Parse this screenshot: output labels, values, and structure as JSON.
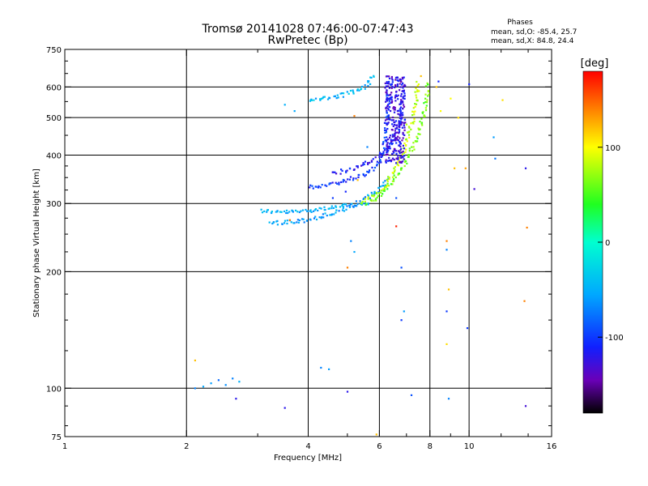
{
  "header": {
    "title": "Tromsø 20141028 07:46:00-07:47:43",
    "subtitle": "RwPretec (Bp)",
    "phase_heading": "Phases",
    "phase_o": "mean, sd,O: -85.4, 25.7",
    "phase_x": "mean, sd,X:  84.8, 24.4"
  },
  "colorbar": {
    "title": "[deg]",
    "range": [
      -180,
      180
    ],
    "ticks": [
      {
        "value": 100,
        "label": "100"
      },
      {
        "value": 0,
        "label": "0"
      },
      {
        "value": -100,
        "label": "-100"
      }
    ],
    "stops": [
      {
        "value": -180,
        "color": "#000000"
      },
      {
        "value": -145,
        "color": "#6a00b8"
      },
      {
        "value": -110,
        "color": "#1020ff"
      },
      {
        "value": -55,
        "color": "#00a8ff"
      },
      {
        "value": 0,
        "color": "#00ffd0"
      },
      {
        "value": 40,
        "color": "#20ff20"
      },
      {
        "value": 100,
        "color": "#ffff00"
      },
      {
        "value": 140,
        "color": "#ff8000"
      },
      {
        "value": 180,
        "color": "#ff0000"
      }
    ]
  },
  "chart_data": {
    "type": "scatter",
    "title": "Tromsø 20141028 07:46:00-07:47:43",
    "subtitle": "RwPretec (Bp)",
    "xlabel": "Frequency [MHz]",
    "ylabel": "Stationary phase Virtual Height [km]",
    "x_scale": "log",
    "y_scale": "log",
    "xlim": [
      1,
      16
    ],
    "ylim": [
      75,
      750
    ],
    "x_ticks": [
      {
        "value": 1,
        "label": "1"
      },
      {
        "value": 2,
        "label": "2"
      },
      {
        "value": 4,
        "label": "4"
      },
      {
        "value": 6,
        "label": "6"
      },
      {
        "value": 8,
        "label": "8"
      },
      {
        "value": 10,
        "label": "10"
      },
      {
        "value": 16,
        "label": "16"
      }
    ],
    "y_ticks": [
      {
        "value": 75,
        "label": "75"
      },
      {
        "value": 100,
        "label": "100"
      },
      {
        "value": 200,
        "label": "200"
      },
      {
        "value": 300,
        "label": "300"
      },
      {
        "value": 400,
        "label": "400"
      },
      {
        "value": 500,
        "label": "500"
      },
      {
        "value": 600,
        "label": "600"
      },
      {
        "value": 750,
        "label": "750"
      }
    ],
    "x_minor_ticks": [
      3,
      5,
      7,
      9,
      12,
      14
    ],
    "y_minor_ticks": [
      80,
      90,
      125,
      150,
      175,
      225,
      250,
      275,
      325,
      350,
      375,
      450,
      550,
      650,
      700
    ],
    "grid": true,
    "traces": [
      {
        "points": [
          [
            3.05,
            288
          ],
          [
            3.3,
            285
          ],
          [
            3.6,
            285
          ],
          [
            3.9,
            287
          ],
          [
            4.2,
            290
          ],
          [
            4.6,
            293
          ],
          [
            5.0,
            296
          ],
          [
            5.4,
            298
          ],
          [
            5.7,
            300
          ]
        ],
        "phase": -50
      },
      {
        "points": [
          [
            3.2,
            267
          ],
          [
            3.5,
            268
          ],
          [
            3.9,
            271
          ],
          [
            4.3,
            277
          ],
          [
            4.7,
            285
          ],
          [
            5.1,
            295
          ],
          [
            5.5,
            307
          ],
          [
            5.9,
            322
          ],
          [
            6.3,
            348
          ]
        ],
        "phase": -60
      },
      {
        "points": [
          [
            5.6,
            300
          ],
          [
            5.9,
            310
          ],
          [
            6.2,
            325
          ],
          [
            6.5,
            345
          ],
          [
            6.8,
            370
          ],
          [
            7.1,
            400
          ],
          [
            7.4,
            440
          ],
          [
            7.6,
            480
          ],
          [
            7.8,
            540
          ],
          [
            7.95,
            620
          ]
        ],
        "phase": 60
      },
      {
        "points": [
          [
            5.4,
            300
          ],
          [
            5.8,
            315
          ],
          [
            6.2,
            330
          ],
          [
            6.5,
            360
          ],
          [
            6.8,
            395
          ],
          [
            7.0,
            430
          ],
          [
            7.2,
            480
          ],
          [
            7.35,
            540
          ],
          [
            7.5,
            620
          ]
        ],
        "phase": 85
      },
      {
        "points": [
          [
            4.0,
            330
          ],
          [
            4.4,
            335
          ],
          [
            4.8,
            340
          ],
          [
            5.2,
            350
          ],
          [
            5.6,
            360
          ],
          [
            5.9,
            375
          ],
          [
            6.1,
            400
          ],
          [
            6.2,
            430
          ],
          [
            6.25,
            480
          ],
          [
            6.3,
            540
          ],
          [
            6.35,
            630
          ]
        ],
        "phase": -100
      },
      {
        "points": [
          [
            4.6,
            360
          ],
          [
            5.0,
            365
          ],
          [
            5.4,
            375
          ],
          [
            5.8,
            390
          ],
          [
            6.2,
            410
          ],
          [
            6.5,
            440
          ],
          [
            6.7,
            480
          ],
          [
            6.8,
            530
          ],
          [
            6.9,
            600
          ]
        ],
        "phase": -115
      },
      {
        "points": [
          [
            4.0,
            550
          ],
          [
            4.4,
            560
          ],
          [
            4.8,
            570
          ],
          [
            5.2,
            585
          ],
          [
            5.5,
            600
          ],
          [
            5.7,
            625
          ],
          [
            5.85,
            650
          ]
        ],
        "phase": -45
      }
    ],
    "band": {
      "x_range": [
        6.2,
        6.95
      ],
      "y_range": [
        380,
        640
      ],
      "phase": -125
    },
    "sparse": [
      [
        2.1,
        100,
        -70
      ],
      [
        2.2,
        101,
        -55
      ],
      [
        2.3,
        103,
        -60
      ],
      [
        2.4,
        105,
        -80
      ],
      [
        2.5,
        102,
        -65
      ],
      [
        2.6,
        106,
        -70
      ],
      [
        2.7,
        104,
        -50
      ],
      [
        2.65,
        94,
        -120
      ],
      [
        2.1,
        118,
        120
      ],
      [
        3.5,
        89,
        -120
      ],
      [
        4.3,
        113,
        -70
      ],
      [
        4.5,
        112,
        -60
      ],
      [
        5.0,
        98,
        -120
      ],
      [
        5.9,
        76,
        120
      ],
      [
        7.2,
        96,
        -90
      ],
      [
        5.1,
        240,
        -70
      ],
      [
        5.2,
        225,
        -55
      ],
      [
        5.0,
        205,
        140
      ],
      [
        6.6,
        262,
        170
      ],
      [
        6.8,
        205,
        -90
      ],
      [
        6.9,
        158,
        -60
      ],
      [
        6.8,
        150,
        -100
      ],
      [
        8.8,
        240,
        140
      ],
      [
        8.8,
        228,
        -70
      ],
      [
        8.9,
        180,
        120
      ],
      [
        8.8,
        158,
        -100
      ],
      [
        8.8,
        130,
        110
      ],
      [
        8.9,
        94,
        -70
      ],
      [
        9.9,
        143,
        -100
      ],
      [
        9.2,
        370,
        120
      ],
      [
        9.8,
        370,
        130
      ],
      [
        10.3,
        327,
        -130
      ],
      [
        10.0,
        610,
        -110
      ],
      [
        11.6,
        392,
        -75
      ],
      [
        11.5,
        445,
        -60
      ],
      [
        12.1,
        555,
        110
      ],
      [
        13.8,
        370,
        -120
      ],
      [
        13.9,
        260,
        140
      ],
      [
        13.7,
        168,
        140
      ],
      [
        13.8,
        90,
        -130
      ],
      [
        3.7,
        520,
        -55
      ],
      [
        3.5,
        540,
        -50
      ],
      [
        5.2,
        505,
        140
      ],
      [
        8.3,
        600,
        120
      ],
      [
        8.5,
        520,
        100
      ],
      [
        8.4,
        620,
        -110
      ],
      [
        9.4,
        500,
        110
      ],
      [
        9.0,
        560,
        100
      ],
      [
        6.5,
        475,
        -125
      ],
      [
        7.6,
        640,
        120
      ],
      [
        7.0,
        480,
        80
      ],
      [
        6.6,
        310,
        -90
      ],
      [
        4.95,
        322,
        -110
      ],
      [
        4.6,
        310,
        -100
      ],
      [
        5.3,
        345,
        120
      ],
      [
        5.6,
        420,
        -70
      ],
      [
        3.6,
        272,
        140
      ]
    ]
  }
}
